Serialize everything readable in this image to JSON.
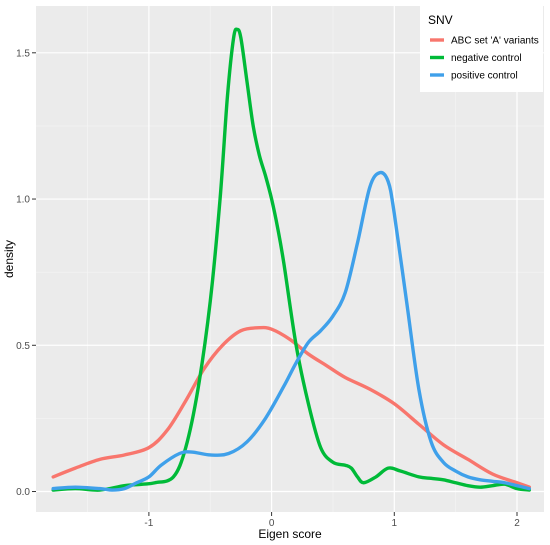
{
  "chart_data": {
    "type": "line",
    "title": "",
    "xlabel": "Eigen score",
    "ylabel": "density",
    "xlim": [
      -1.92,
      2.22
    ],
    "ylim": [
      -0.07,
      1.66
    ],
    "x_ticks": [
      -1,
      0,
      1,
      2
    ],
    "x_tick_labels": [
      "-1",
      "0",
      "1",
      "2"
    ],
    "y_ticks": [
      0.0,
      0.5,
      1.0,
      1.5
    ],
    "y_tick_labels": [
      "0.0",
      "0.5",
      "1.0",
      "1.5"
    ],
    "grid": true,
    "legend": {
      "title": "SNV",
      "position": "top-right"
    },
    "series": [
      {
        "name": "ABC set 'A' variants",
        "color": "#f8766d",
        "points": [
          [
            -1.78,
            0.05
          ],
          [
            -1.6,
            0.08
          ],
          [
            -1.4,
            0.11
          ],
          [
            -1.2,
            0.125
          ],
          [
            -1.0,
            0.15
          ],
          [
            -0.85,
            0.21
          ],
          [
            -0.7,
            0.31
          ],
          [
            -0.55,
            0.42
          ],
          [
            -0.4,
            0.5
          ],
          [
            -0.25,
            0.55
          ],
          [
            -0.1,
            0.56
          ],
          [
            0.0,
            0.555
          ],
          [
            0.15,
            0.52
          ],
          [
            0.3,
            0.47
          ],
          [
            0.45,
            0.43
          ],
          [
            0.6,
            0.39
          ],
          [
            0.8,
            0.35
          ],
          [
            1.0,
            0.3
          ],
          [
            1.2,
            0.23
          ],
          [
            1.4,
            0.16
          ],
          [
            1.6,
            0.11
          ],
          [
            1.8,
            0.06
          ],
          [
            2.0,
            0.03
          ],
          [
            2.1,
            0.015
          ]
        ]
      },
      {
        "name": "negative control",
        "color": "#00ba38",
        "points": [
          [
            -1.78,
            0.005
          ],
          [
            -1.6,
            0.01
          ],
          [
            -1.4,
            0.005
          ],
          [
            -1.2,
            0.02
          ],
          [
            -1.05,
            0.025
          ],
          [
            -0.95,
            0.03
          ],
          [
            -0.8,
            0.05
          ],
          [
            -0.7,
            0.15
          ],
          [
            -0.6,
            0.35
          ],
          [
            -0.5,
            0.65
          ],
          [
            -0.42,
            1.0
          ],
          [
            -0.36,
            1.35
          ],
          [
            -0.31,
            1.55
          ],
          [
            -0.28,
            1.58
          ],
          [
            -0.25,
            1.55
          ],
          [
            -0.2,
            1.4
          ],
          [
            -0.15,
            1.25
          ],
          [
            -0.1,
            1.15
          ],
          [
            -0.05,
            1.08
          ],
          [
            0.0,
            1.0
          ],
          [
            0.05,
            0.9
          ],
          [
            0.1,
            0.78
          ],
          [
            0.2,
            0.5
          ],
          [
            0.3,
            0.3
          ],
          [
            0.4,
            0.15
          ],
          [
            0.5,
            0.1
          ],
          [
            0.6,
            0.09
          ],
          [
            0.65,
            0.08
          ],
          [
            0.7,
            0.05
          ],
          [
            0.75,
            0.03
          ],
          [
            0.85,
            0.05
          ],
          [
            0.95,
            0.08
          ],
          [
            1.05,
            0.07
          ],
          [
            1.2,
            0.05
          ],
          [
            1.3,
            0.045
          ],
          [
            1.4,
            0.04
          ],
          [
            1.5,
            0.03
          ],
          [
            1.6,
            0.02
          ],
          [
            1.7,
            0.015
          ],
          [
            1.8,
            0.02
          ],
          [
            1.9,
            0.025
          ],
          [
            2.0,
            0.01
          ],
          [
            2.1,
            0.005
          ]
        ]
      },
      {
        "name": "positive control",
        "color": "#3fa0ea",
        "points": [
          [
            -1.78,
            0.01
          ],
          [
            -1.6,
            0.015
          ],
          [
            -1.4,
            0.01
          ],
          [
            -1.3,
            0.005
          ],
          [
            -1.2,
            0.01
          ],
          [
            -1.1,
            0.03
          ],
          [
            -1.0,
            0.05
          ],
          [
            -0.9,
            0.09
          ],
          [
            -0.75,
            0.13
          ],
          [
            -0.65,
            0.135
          ],
          [
            -0.5,
            0.125
          ],
          [
            -0.35,
            0.13
          ],
          [
            -0.2,
            0.17
          ],
          [
            -0.05,
            0.25
          ],
          [
            0.1,
            0.36
          ],
          [
            0.2,
            0.44
          ],
          [
            0.3,
            0.51
          ],
          [
            0.4,
            0.55
          ],
          [
            0.5,
            0.6
          ],
          [
            0.6,
            0.68
          ],
          [
            0.7,
            0.85
          ],
          [
            0.8,
            1.04
          ],
          [
            0.88,
            1.09
          ],
          [
            0.95,
            1.06
          ],
          [
            1.0,
            0.95
          ],
          [
            1.1,
            0.65
          ],
          [
            1.2,
            0.35
          ],
          [
            1.3,
            0.17
          ],
          [
            1.4,
            0.1
          ],
          [
            1.5,
            0.07
          ],
          [
            1.6,
            0.05
          ],
          [
            1.7,
            0.04
          ],
          [
            1.8,
            0.035
          ],
          [
            1.9,
            0.03
          ],
          [
            2.0,
            0.02
          ],
          [
            2.1,
            0.01
          ]
        ]
      }
    ]
  }
}
